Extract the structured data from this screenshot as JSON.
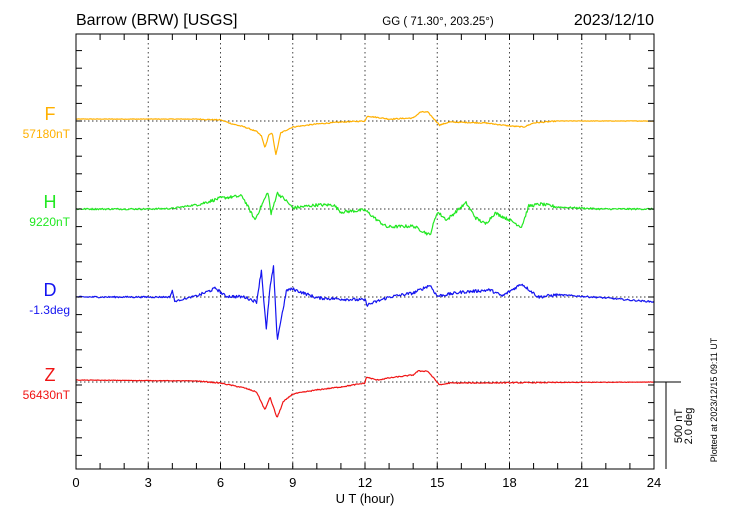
{
  "header": {
    "station": "Barrow (BRW)  [USGS]",
    "coords": "GG ( 71.30°, 203.25°)",
    "date": "2023/12/10"
  },
  "footer": {
    "plotted_at": "Plotted at 2023/12/15 09:11 UT"
  },
  "chart_data": {
    "type": "line",
    "title": "Barrow (BRW)  [USGS]",
    "xlabel": "U T (hour)",
    "xlim": [
      0,
      24
    ],
    "x_ticks": [
      "0",
      "3",
      "6",
      "9",
      "12",
      "15",
      "18",
      "21",
      "24"
    ],
    "x_tick_values": [
      0,
      3,
      6,
      9,
      12,
      15,
      18,
      21,
      24
    ],
    "grid": true,
    "scale_bar": {
      "nT_label": "500 nT",
      "deg_label": "2.0 deg",
      "nT": 500,
      "deg": 2.0
    },
    "series": [
      {
        "name": "F",
        "baseline_label": "57180nT",
        "unit": "nT",
        "color": "#ffb000",
        "noise": 3,
        "points": [
          [
            0,
            11
          ],
          [
            5,
            11
          ],
          [
            6,
            6
          ],
          [
            6.5,
            -17
          ],
          [
            7,
            -34
          ],
          [
            7.5,
            -60
          ],
          [
            7.7,
            -85
          ],
          [
            7.85,
            -153
          ],
          [
            8,
            -80
          ],
          [
            8.15,
            -70
          ],
          [
            8.3,
            -193
          ],
          [
            8.5,
            -68
          ],
          [
            9,
            -34
          ],
          [
            10,
            -17
          ],
          [
            11,
            -6
          ],
          [
            12,
            0
          ],
          [
            12.1,
            28
          ],
          [
            13,
            11
          ],
          [
            14,
            17
          ],
          [
            14.3,
            51
          ],
          [
            14.6,
            51
          ],
          [
            15.1,
            -23
          ],
          [
            15.5,
            -6
          ],
          [
            17,
            -11
          ],
          [
            18,
            -28
          ],
          [
            18.6,
            -34
          ],
          [
            19,
            -11
          ],
          [
            20,
            0
          ],
          [
            24,
            0
          ]
        ]
      },
      {
        "name": "H",
        "baseline_label": "9220nT",
        "unit": "nT",
        "color": "#22e822",
        "noise": 9,
        "points": [
          [
            0,
            0
          ],
          [
            3,
            0
          ],
          [
            4,
            3
          ],
          [
            5.15,
            28
          ],
          [
            6,
            62
          ],
          [
            6.9,
            74
          ],
          [
            7.43,
            -62
          ],
          [
            7.97,
            97
          ],
          [
            8.1,
            -30
          ],
          [
            8.35,
            91
          ],
          [
            8.7,
            51
          ],
          [
            9,
            6
          ],
          [
            10,
            23
          ],
          [
            10.7,
            23
          ],
          [
            11,
            -17
          ],
          [
            12,
            -6
          ],
          [
            12.5,
            -62
          ],
          [
            12.9,
            -102
          ],
          [
            14,
            -97
          ],
          [
            14.7,
            -148
          ],
          [
            15,
            -17
          ],
          [
            15.4,
            -62
          ],
          [
            15.9,
            0
          ],
          [
            16.2,
            34
          ],
          [
            16.6,
            -51
          ],
          [
            17,
            -85
          ],
          [
            17.4,
            -23
          ],
          [
            18,
            -62
          ],
          [
            18.5,
            -102
          ],
          [
            18.8,
            17
          ],
          [
            19.3,
            28
          ],
          [
            20,
            11
          ],
          [
            21.8,
            0
          ],
          [
            24,
            0
          ]
        ]
      },
      {
        "name": "D",
        "baseline_label": "-1.3deg",
        "unit": "deg",
        "color": "#1414f0",
        "noise": 0.035,
        "points": [
          [
            0,
            0
          ],
          [
            3.9,
            0
          ],
          [
            4.0,
            0.15
          ],
          [
            4.1,
            -0.1
          ],
          [
            5.15,
            0.05
          ],
          [
            5.8,
            0.2
          ],
          [
            6.2,
            0.02
          ],
          [
            7,
            0
          ],
          [
            7.5,
            -0.11
          ],
          [
            7.7,
            0.61
          ],
          [
            7.9,
            -0.75
          ],
          [
            8.05,
            0.2
          ],
          [
            8.2,
            0.68
          ],
          [
            8.35,
            -0.98
          ],
          [
            8.75,
            0.16
          ],
          [
            9,
            0.18
          ],
          [
            10,
            -0.02
          ],
          [
            12,
            -0.07
          ],
          [
            12.1,
            -0.18
          ],
          [
            13,
            0
          ],
          [
            14,
            0.09
          ],
          [
            14.7,
            0.27
          ],
          [
            15,
            0.02
          ],
          [
            16,
            0.11
          ],
          [
            17.2,
            0.16
          ],
          [
            17.7,
            0.02
          ],
          [
            18.5,
            0.3
          ],
          [
            19.2,
            0
          ],
          [
            20,
            0.05
          ],
          [
            22,
            -0.02
          ],
          [
            23,
            -0.07
          ],
          [
            24,
            -0.11
          ]
        ]
      },
      {
        "name": "Z",
        "baseline_label": "56430nT",
        "unit": "nT",
        "color": "#f01414",
        "noise": 3,
        "points": [
          [
            0,
            11
          ],
          [
            5,
            6
          ],
          [
            6,
            -6
          ],
          [
            7,
            -34
          ],
          [
            7.5,
            -57
          ],
          [
            7.85,
            -159
          ],
          [
            8.05,
            -85
          ],
          [
            8.35,
            -204
          ],
          [
            8.6,
            -114
          ],
          [
            9,
            -68
          ],
          [
            10,
            -45
          ],
          [
            11,
            -28
          ],
          [
            12,
            -6
          ],
          [
            12.05,
            28
          ],
          [
            12.5,
            11
          ],
          [
            13,
            23
          ],
          [
            14,
            40
          ],
          [
            14.2,
            62
          ],
          [
            14.6,
            62
          ],
          [
            15.1,
            -17
          ],
          [
            15.5,
            -6
          ],
          [
            24,
            0
          ]
        ]
      }
    ]
  }
}
